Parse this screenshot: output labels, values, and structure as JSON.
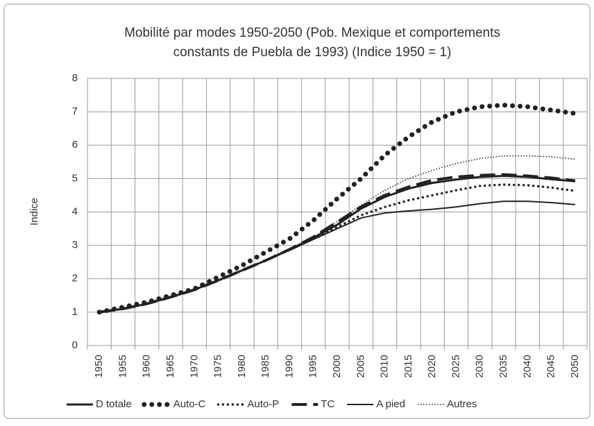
{
  "chart_data": {
    "type": "line",
    "title": [
      "Mobilité par modes 1950-2050 (Pob. Mexique et comportements",
      "constants de Puebla de 1993) (Indice 1950 = 1)"
    ],
    "y_label": "Indice",
    "categories": [
      "1950",
      "1955",
      "1960",
      "1965",
      "1970",
      "1975",
      "1980",
      "1985",
      "1990",
      "1995",
      "2000",
      "2005",
      "2010",
      "2015",
      "2020",
      "2025",
      "2030",
      "2035",
      "2040",
      "2045",
      "2050"
    ],
    "ylim": [
      0,
      8
    ],
    "yticks": [
      0,
      1,
      2,
      3,
      4,
      5,
      6,
      7,
      8
    ],
    "grid": true,
    "legend": "bottom",
    "series": [
      {
        "name": "D totale",
        "color": "#222222",
        "style": "thick-solid",
        "values": [
          1,
          1.1,
          1.25,
          1.45,
          1.67,
          1.95,
          2.25,
          2.55,
          2.88,
          3.22,
          3.62,
          4.1,
          4.45,
          4.7,
          4.87,
          4.97,
          5.05,
          5.08,
          5.05,
          4.98,
          4.92
        ]
      },
      {
        "name": "Auto-C",
        "color": "#222222",
        "style": "big-dots",
        "values": [
          1,
          1.15,
          1.3,
          1.5,
          1.7,
          2.05,
          2.4,
          2.8,
          3.2,
          3.75,
          4.4,
          5.0,
          5.7,
          6.25,
          6.7,
          7.0,
          7.15,
          7.2,
          7.15,
          7.05,
          6.95
        ]
      },
      {
        "name": "Auto-P",
        "color": "#222222",
        "style": "small-dots",
        "values": [
          1,
          1.1,
          1.25,
          1.45,
          1.68,
          1.95,
          2.25,
          2.55,
          2.87,
          3.2,
          3.55,
          3.9,
          4.15,
          4.35,
          4.5,
          4.65,
          4.78,
          4.82,
          4.8,
          4.73,
          4.63
        ]
      },
      {
        "name": "TC",
        "color": "#222222",
        "style": "long-dash",
        "values": [
          1,
          1.1,
          1.25,
          1.45,
          1.67,
          1.95,
          2.25,
          2.55,
          2.88,
          3.25,
          3.7,
          4.15,
          4.5,
          4.75,
          4.95,
          5.05,
          5.1,
          5.12,
          5.08,
          5.02,
          4.93
        ]
      },
      {
        "name": "A pied",
        "color": "#222222",
        "style": "thin-solid",
        "values": [
          1,
          1.1,
          1.25,
          1.45,
          1.67,
          1.95,
          2.25,
          2.55,
          2.85,
          3.18,
          3.5,
          3.82,
          3.97,
          4.03,
          4.08,
          4.15,
          4.25,
          4.32,
          4.32,
          4.28,
          4.22
        ]
      },
      {
        "name": "Autres",
        "color": "#222222",
        "style": "fine-dots",
        "values": [
          1,
          1.1,
          1.25,
          1.45,
          1.67,
          1.95,
          2.25,
          2.55,
          2.88,
          3.25,
          3.72,
          4.2,
          4.65,
          5.0,
          5.25,
          5.45,
          5.6,
          5.68,
          5.68,
          5.65,
          5.58
        ]
      }
    ]
  }
}
